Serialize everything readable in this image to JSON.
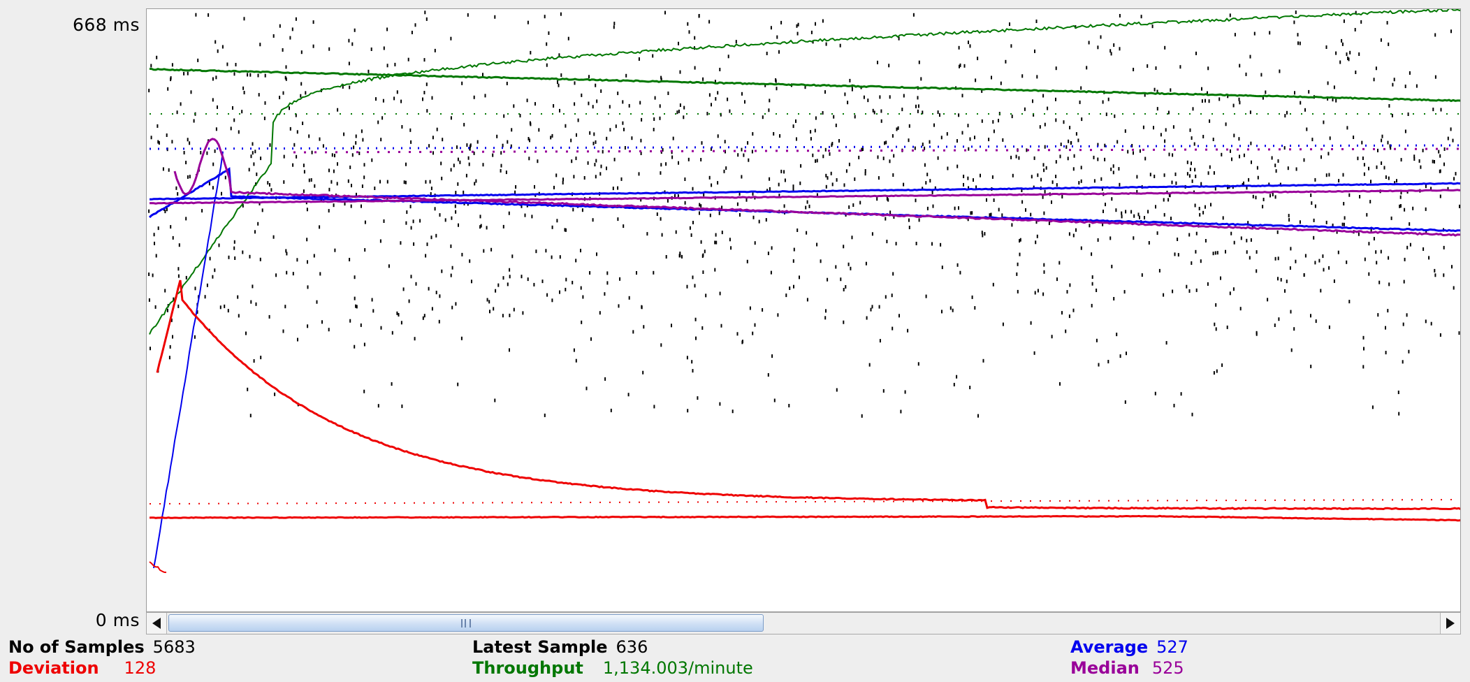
{
  "y_axis": {
    "max_label": "668  ms",
    "min_label": "0  ms"
  },
  "colors": {
    "data": "#000000",
    "average": "#0000ee",
    "median": "#990099",
    "deviation": "#ee0000",
    "throughput": "#007700"
  },
  "chart_data": {
    "type": "scatter",
    "ylim": [
      0,
      668
    ],
    "yunit": "ms",
    "series": [
      {
        "name": "Average",
        "role": "running_average",
        "final_value": 527
      },
      {
        "name": "Median",
        "role": "running_median",
        "final_value": 525
      },
      {
        "name": "Deviation",
        "role": "running_deviation",
        "final_value": 128
      },
      {
        "name": "Throughput",
        "role": "running_throughput",
        "final_value": "1,134.003/minute"
      }
    ]
  },
  "scrollbar": {
    "left_icon": "arrow-left-icon",
    "right_icon": "arrow-right-icon",
    "thumb_position": 0.0,
    "thumb_extent": 0.46
  },
  "stats": {
    "samples": {
      "label": "No of Samples",
      "value": "5683"
    },
    "latest": {
      "label": "Latest Sample",
      "value": "636"
    },
    "average": {
      "label": "Average",
      "value": "527"
    },
    "deviation": {
      "label": "Deviation",
      "value": "128"
    },
    "throughput": {
      "label": "Throughput",
      "value": "1,134.003/minute"
    },
    "median": {
      "label": "Median",
      "value": "525"
    }
  }
}
